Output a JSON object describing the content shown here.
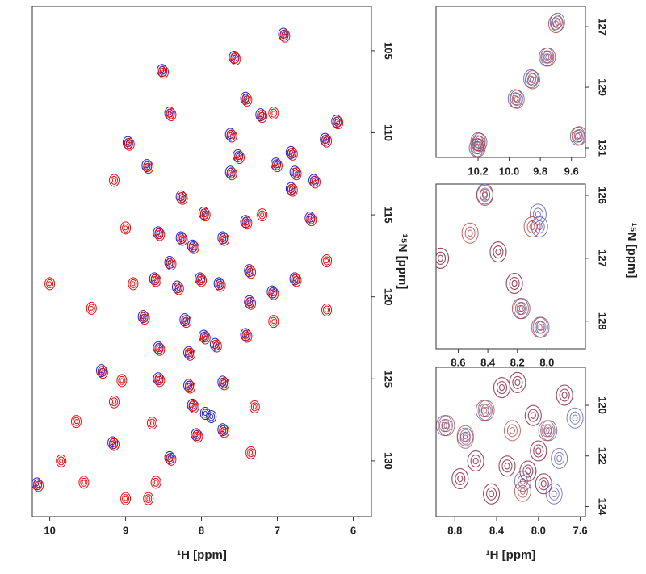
{
  "chart_data": [
    {
      "type": "scatter",
      "xlabel": "¹H [ppm]",
      "ylabel": "¹⁵N [ppm]",
      "xlim": [
        10.23,
        5.76
      ],
      "ylim": [
        133.4,
        102.3
      ],
      "xticks": [
        10,
        9,
        8,
        7,
        6
      ],
      "yticks": [
        105,
        110,
        115,
        120,
        125,
        130
      ],
      "series": [
        {
          "color": "#2020c8",
          "x": [
            6.92,
            7.57,
            8.52,
            7.42,
            7.22,
            6.22,
            8.42,
            7.62,
            7.52,
            7.62,
            6.82,
            6.77,
            6.82,
            7.02,
            6.37,
            6.52,
            8.97,
            8.72,
            8.27,
            7.97,
            7.42,
            6.57,
            8.57,
            8.27,
            8.42,
            8.12,
            7.72,
            7.37,
            6.77,
            8.62,
            8.32,
            8.02,
            7.77,
            7.37,
            7.07,
            8.77,
            8.22,
            7.97,
            8.57,
            8.17,
            7.82,
            7.42,
            9.32,
            8.57,
            8.17,
            7.72,
            8.12,
            7.87,
            8.07,
            7.72,
            9.17,
            8.42,
            10.17,
            7.95
          ],
          "y": [
            104.0,
            105.4,
            106.2,
            107.9,
            108.9,
            109.3,
            108.8,
            110.1,
            111.4,
            112.4,
            111.2,
            112.4,
            113.4,
            111.9,
            110.4,
            112.9,
            110.6,
            112.0,
            113.9,
            114.9,
            115.4,
            115.2,
            116.1,
            116.4,
            117.9,
            116.9,
            116.4,
            118.4,
            118.9,
            118.9,
            119.4,
            118.9,
            119.2,
            120.3,
            119.7,
            121.2,
            121.4,
            122.4,
            123.1,
            123.4,
            122.9,
            122.3,
            124.5,
            125.0,
            125.4,
            125.2,
            126.6,
            127.3,
            128.4,
            128.1,
            128.9,
            129.8,
            131.4,
            127.1
          ]
        },
        {
          "color": "#e01010",
          "x": [
            6.9,
            7.55,
            8.5,
            7.4,
            7.2,
            7.05,
            6.2,
            8.4,
            7.6,
            7.5,
            7.6,
            6.8,
            6.75,
            6.8,
            7.0,
            6.35,
            6.5,
            8.95,
            9.15,
            8.7,
            8.25,
            7.95,
            7.4,
            7.2,
            6.55,
            9.0,
            8.55,
            8.25,
            8.4,
            8.1,
            7.7,
            7.35,
            6.35,
            6.75,
            10.0,
            8.9,
            8.6,
            8.3,
            8.0,
            7.75,
            7.35,
            7.05,
            6.35,
            9.45,
            8.75,
            8.2,
            7.95,
            8.55,
            8.15,
            7.8,
            7.4,
            7.05,
            9.3,
            9.05,
            8.55,
            8.15,
            7.7,
            9.15,
            8.1,
            7.3,
            9.65,
            8.65,
            8.05,
            7.7,
            9.15,
            8.4,
            7.35,
            9.85,
            8.6,
            9.55,
            10.15,
            9.0,
            8.7
          ],
          "y": [
            104.1,
            105.5,
            106.3,
            108.0,
            109.0,
            108.8,
            109.4,
            108.9,
            110.2,
            111.5,
            112.5,
            111.3,
            112.5,
            113.5,
            112.0,
            110.5,
            113.0,
            110.7,
            112.9,
            112.1,
            114.0,
            115.0,
            115.5,
            115.0,
            115.3,
            115.8,
            116.2,
            116.5,
            118.0,
            117.0,
            116.5,
            118.5,
            117.8,
            119.0,
            119.2,
            119.2,
            119.0,
            119.5,
            119.0,
            119.3,
            120.4,
            119.8,
            120.8,
            120.7,
            121.3,
            121.5,
            122.5,
            123.2,
            123.5,
            123.0,
            122.4,
            121.5,
            124.6,
            125.1,
            125.1,
            125.5,
            125.3,
            126.4,
            126.7,
            126.7,
            127.6,
            127.7,
            128.5,
            128.2,
            129.0,
            129.9,
            129.5,
            130.0,
            131.3,
            131.3,
            131.5,
            132.3,
            132.3
          ]
        }
      ]
    },
    {
      "type": "scatter",
      "xlim": [
        10.47,
        9.51
      ],
      "ylim": [
        131.32,
        126.33
      ],
      "xticks": [
        10.2,
        {
          "value": 10,
          "label": "10.0"
        },
        9.8,
        9.6
      ],
      "yticks": [
        127,
        129,
        131
      ],
      "series": [
        {
          "color": "#4a4aa0",
          "x": [
            9.69,
            9.76,
            9.86,
            9.96,
            9.56,
            10.19,
            10.21
          ],
          "y": [
            126.85,
            128.0,
            128.72,
            129.38,
            130.62,
            130.82,
            131.0
          ]
        },
        {
          "color": "#b03030",
          "x": [
            9.7,
            9.75,
            9.85,
            9.95,
            9.55,
            10.2,
            10.2
          ],
          "y": [
            126.9,
            128.0,
            128.75,
            129.4,
            130.6,
            130.8,
            131.0
          ]
        }
      ]
    },
    {
      "type": "scatter",
      "ylabel": "¹⁵N [ppm]",
      "xlim": [
        8.75,
        7.74
      ],
      "ylim": [
        128.44,
        125.82
      ],
      "xticks": [
        8.6,
        8.4,
        8.2,
        {
          "value": 8,
          "label": "8.0"
        }
      ],
      "yticks": [
        126,
        127,
        128
      ],
      "series": [
        {
          "color": "#4a4aa0",
          "x": [
            8.72,
            8.42,
            8.33,
            8.06,
            8.05,
            8.22,
            8.17,
            8.04
          ],
          "y": [
            127.0,
            125.98,
            126.9,
            126.3,
            126.5,
            127.4,
            127.8,
            128.1
          ]
        },
        {
          "color": "#b03030",
          "x": [
            8.72,
            8.42,
            8.52,
            8.33,
            8.1,
            8.22,
            8.18,
            8.05
          ],
          "y": [
            127.0,
            126.0,
            126.6,
            126.9,
            126.5,
            127.4,
            127.8,
            128.1
          ]
        }
      ]
    },
    {
      "type": "scatter",
      "xlabel": "¹H [ppm]",
      "xlim": [
        8.98,
        7.55
      ],
      "ylim": [
        124.4,
        118.5
      ],
      "xticks": [
        8.8,
        8.4,
        {
          "value": 8,
          "label": "8.0"
        },
        7.6
      ],
      "yticks": [
        120,
        122,
        124
      ],
      "series": [
        {
          "color": "#4a4aa0",
          "x": [
            8.9,
            8.7,
            8.5,
            8.35,
            8.2,
            8.05,
            7.9,
            7.75,
            7.65,
            8.6,
            8.3,
            8.1,
            7.95,
            7.8,
            8.45,
            8.15,
            7.85,
            8.75,
            8.0
          ],
          "y": [
            120.8,
            121.3,
            120.2,
            119.3,
            119.1,
            120.4,
            121.0,
            119.6,
            120.5,
            122.2,
            122.4,
            122.6,
            123.1,
            122.1,
            123.5,
            123.0,
            123.5,
            122.9,
            121.8
          ]
        },
        {
          "color": "#b03030",
          "x": [
            8.88,
            8.7,
            8.52,
            8.35,
            8.2,
            8.05,
            7.92,
            7.75,
            8.6,
            8.3,
            8.1,
            7.95,
            8.45,
            8.15,
            8.75,
            8.0,
            8.25
          ],
          "y": [
            120.8,
            121.2,
            120.2,
            119.3,
            119.1,
            120.4,
            121.0,
            119.6,
            122.2,
            122.4,
            122.6,
            123.1,
            123.5,
            123.4,
            122.9,
            121.8,
            121.0
          ]
        }
      ]
    }
  ]
}
